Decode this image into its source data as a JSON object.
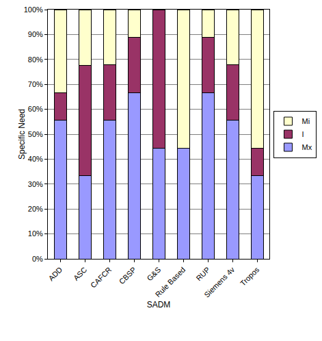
{
  "chart_data": {
    "type": "bar",
    "stacked": true,
    "grid": true,
    "legend": "right",
    "xlabel": "SADM",
    "ylabel": "Specific Need",
    "categories": [
      "ADD",
      "ASC",
      "CAFCR",
      "CBSP",
      "G&S",
      "Rule Based",
      "RUP",
      "Siemens 4v",
      "Tropos"
    ],
    "series": [
      {
        "name": "Mx",
        "color": "#9999ff",
        "values": [
          55.6,
          33.3,
          55.6,
          66.7,
          44.4,
          44.4,
          66.7,
          55.6,
          33.3
        ]
      },
      {
        "name": "I",
        "color": "#993366",
        "values": [
          11.1,
          44.4,
          22.2,
          22.2,
          55.6,
          0,
          22.2,
          22.2,
          11.1
        ]
      },
      {
        "name": "Mi",
        "color": "#ffffcc",
        "values": [
          33.3,
          22.2,
          22.2,
          11.1,
          0,
          55.6,
          11.1,
          22.2,
          55.6
        ]
      }
    ],
    "ylim": [
      0,
      100
    ],
    "yticks": [
      {
        "value": 0,
        "label": "0%"
      },
      {
        "value": 10,
        "label": "10%"
      },
      {
        "value": 20,
        "label": "20%"
      },
      {
        "value": 30,
        "label": "30%"
      },
      {
        "value": 40,
        "label": "40%"
      },
      {
        "value": 50,
        "label": "50%"
      },
      {
        "value": 60,
        "label": "60%"
      },
      {
        "value": 70,
        "label": "70%"
      },
      {
        "value": 80,
        "label": "80%"
      },
      {
        "value": 90,
        "label": "90%"
      },
      {
        "value": 100,
        "label": "100%"
      }
    ]
  }
}
